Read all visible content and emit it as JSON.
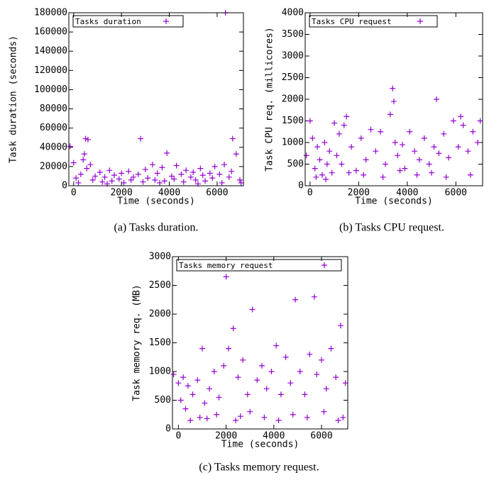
{
  "chart_data": [
    {
      "type": "scatter",
      "caption": "(a) Tasks duration.",
      "xlabel": "Time (seconds)",
      "ylabel": "Task duration (seconds)",
      "xlim": [
        -200,
        7100
      ],
      "ylim": [
        0,
        180000
      ],
      "xticks": [
        0,
        2000,
        4000,
        6000
      ],
      "yticks": [
        0,
        20000,
        40000,
        60000,
        80000,
        100000,
        120000,
        140000,
        160000,
        180000
      ],
      "legend": "top-left",
      "series": [
        {
          "name": "Tasks duration",
          "color": "#9400d3",
          "x": [
            -150,
            0,
            100,
            200,
            300,
            400,
            500,
            600,
            700,
            800,
            900,
            1100,
            1200,
            1300,
            1500,
            1600,
            1700,
            1900,
            2000,
            2100,
            2300,
            2400,
            2500,
            2700,
            2800,
            2900,
            3000,
            3100,
            3300,
            3400,
            3500,
            3700,
            3800,
            3900,
            4100,
            4200,
            4300,
            4500,
            4600,
            4700,
            4900,
            5000,
            5100,
            5300,
            5400,
            5500,
            5700,
            5800,
            5900,
            6100,
            6200,
            6300,
            6350,
            6500,
            6600,
            6650,
            6800,
            6950,
            7000,
            450,
            550,
            1400,
            3600,
            5200
          ],
          "values": [
            41000,
            24000,
            8000,
            3000,
            12000,
            27000,
            49000,
            48000,
            22000,
            6000,
            10000,
            14000,
            4000,
            9000,
            16000,
            5000,
            11000,
            7000,
            13000,
            3000,
            15000,
            6000,
            9000,
            12000,
            49000,
            4000,
            17000,
            8000,
            22000,
            6000,
            13000,
            19000,
            5000,
            34000,
            10000,
            7000,
            21000,
            12000,
            4000,
            16000,
            9000,
            14000,
            6000,
            18000,
            11000,
            5000,
            13000,
            8000,
            20000,
            12000,
            3000,
            22000,
            180000,
            9000,
            15000,
            49000,
            33000,
            6000,
            3000,
            33000,
            18000,
            2000,
            3000,
            2000
          ]
        }
      ]
    },
    {
      "type": "scatter",
      "caption": "(b) Tasks CPU request.",
      "xlabel": "Time (seconds)",
      "ylabel": "Task CPU req. (millicores)",
      "xlim": [
        -200,
        7100
      ],
      "ylim": [
        0,
        4000
      ],
      "xticks": [
        0,
        2000,
        4000,
        6000
      ],
      "yticks": [
        0,
        500,
        1000,
        1500,
        2000,
        2500,
        3000,
        3500,
        4000
      ],
      "legend": "top-left",
      "series": [
        {
          "name": "Tasks CPU request",
          "color": "#9400d3",
          "x": [
            -150,
            0,
            100,
            200,
            300,
            400,
            500,
            600,
            700,
            800,
            900,
            1000,
            1100,
            1200,
            1300,
            1400,
            1500,
            1700,
            1900,
            2100,
            2300,
            2500,
            2700,
            2900,
            3100,
            3300,
            3400,
            3450,
            3500,
            3600,
            3800,
            3900,
            4100,
            4300,
            4500,
            4700,
            4900,
            5100,
            5200,
            5300,
            5500,
            5700,
            5900,
            6100,
            6200,
            6300,
            6500,
            6700,
            6900,
            7000,
            250,
            650,
            1600,
            2200,
            3000,
            3700,
            4400,
            5000,
            5600,
            6600
          ],
          "values": [
            700,
            1500,
            1100,
            400,
            900,
            600,
            250,
            1000,
            500,
            800,
            300,
            1450,
            700,
            1200,
            500,
            1400,
            1600,
            900,
            350,
            1100,
            600,
            1300,
            800,
            1250,
            500,
            1650,
            2250,
            1950,
            1000,
            700,
            950,
            400,
            1250,
            800,
            600,
            1100,
            500,
            900,
            2000,
            750,
            1200,
            650,
            1500,
            900,
            1600,
            1400,
            800,
            1250,
            1000,
            1500,
            200,
            150,
            300,
            250,
            200,
            350,
            250,
            300,
            200,
            250
          ]
        }
      ]
    },
    {
      "type": "scatter",
      "caption": "(c) Tasks memory request.",
      "xlabel": "Time (seconds)",
      "ylabel": "Task memory req. (MB)",
      "xlim": [
        -250,
        7100
      ],
      "ylim": [
        0,
        3000
      ],
      "xticks": [
        0,
        2000,
        4000,
        6000
      ],
      "yticks": [
        0,
        500,
        1000,
        1500,
        2000,
        2500,
        3000
      ],
      "legend": "top-left",
      "series": [
        {
          "name": "Tasks memory request",
          "color": "#9400d3",
          "x": [
            -200,
            0,
            100,
            200,
            300,
            400,
            600,
            800,
            1000,
            1100,
            1300,
            1500,
            1700,
            1900,
            2000,
            2100,
            2300,
            2500,
            2700,
            2900,
            3100,
            3300,
            3500,
            3700,
            3900,
            4100,
            4300,
            4500,
            4700,
            4900,
            5100,
            5300,
            5500,
            5700,
            5800,
            6000,
            6200,
            6400,
            6600,
            6800,
            7000,
            500,
            900,
            1600,
            2400,
            3000,
            3600,
            4200,
            4800,
            5400,
            6100,
            6700,
            6900,
            1200,
            2600
          ],
          "values": [
            950,
            800,
            500,
            900,
            350,
            750,
            600,
            850,
            1400,
            450,
            700,
            1000,
            550,
            1100,
            2650,
            1400,
            1750,
            900,
            1200,
            600,
            2080,
            850,
            1100,
            700,
            1000,
            1450,
            600,
            1250,
            800,
            2250,
            1000,
            600,
            1300,
            2300,
            950,
            1200,
            700,
            1400,
            900,
            1800,
            800,
            150,
            200,
            250,
            150,
            300,
            200,
            150,
            250,
            200,
            300,
            150,
            200,
            180,
            220
          ]
        }
      ]
    }
  ]
}
